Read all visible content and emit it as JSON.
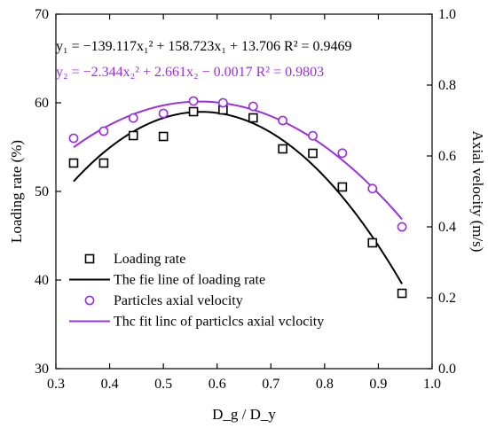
{
  "chart_data": {
    "type": "scatter",
    "xlabel": "D_g / D_y",
    "ylabel_left": "Loading rate (%)",
    "ylabel_right": "Axial velocity (m/s)",
    "xlim": [
      0.3,
      1.0
    ],
    "ylim_left": [
      30,
      70
    ],
    "ylim_right": [
      0.0,
      1.0
    ],
    "x_ticks": [
      "0.3",
      "0.4",
      "0.5",
      "0.6",
      "0.7",
      "0.8",
      "0.9",
      "1.0"
    ],
    "y_left_ticks": [
      "30",
      "40",
      "50",
      "60",
      "70"
    ],
    "y_right_ticks": [
      "0.0",
      "0.2",
      "0.4",
      "0.6",
      "0.8",
      "1.0"
    ],
    "equation_1": "y₁ = −139.117x₁² + 158.723x₁ + 13.706  R² = 0.9469",
    "equation_2": "y₂ = −2.344x₂² + 2.661x₂ − 0.0017  R² = 0.9803",
    "legend_position": "lower-left",
    "series": [
      {
        "name": "Loading rate",
        "axis": "left",
        "marker": "square",
        "color": "#000000",
        "x": [
          0.333,
          0.389,
          0.444,
          0.5,
          0.556,
          0.611,
          0.667,
          0.722,
          0.778,
          0.833,
          0.889,
          0.944
        ],
        "y": [
          53.2,
          53.2,
          56.3,
          56.2,
          59.0,
          59.2,
          58.3,
          54.8,
          54.3,
          50.5,
          44.2,
          38.5
        ]
      },
      {
        "name": "The fie line of loading rate",
        "axis": "left",
        "kind": "fit",
        "color": "#000000",
        "coef": [
          -139.117,
          158.723,
          13.706
        ],
        "x_range": [
          0.333,
          0.944
        ]
      },
      {
        "name": "Particles axial velocity",
        "axis": "right",
        "marker": "circle",
        "color": "#9b30e0",
        "x": [
          0.333,
          0.389,
          0.444,
          0.5,
          0.556,
          0.611,
          0.667,
          0.722,
          0.778,
          0.833,
          0.889,
          0.944
        ],
        "y": [
          0.65,
          0.67,
          0.707,
          0.72,
          0.755,
          0.75,
          0.74,
          0.7,
          0.657,
          0.608,
          0.508,
          0.4
        ]
      },
      {
        "name": "Thc fit linc of particlcs axial vclocity",
        "axis": "right",
        "kind": "fit",
        "color": "#9b30e0",
        "coef": [
          -2.344,
          2.661,
          -0.0017
        ],
        "x_range": [
          0.333,
          0.944
        ]
      }
    ]
  }
}
